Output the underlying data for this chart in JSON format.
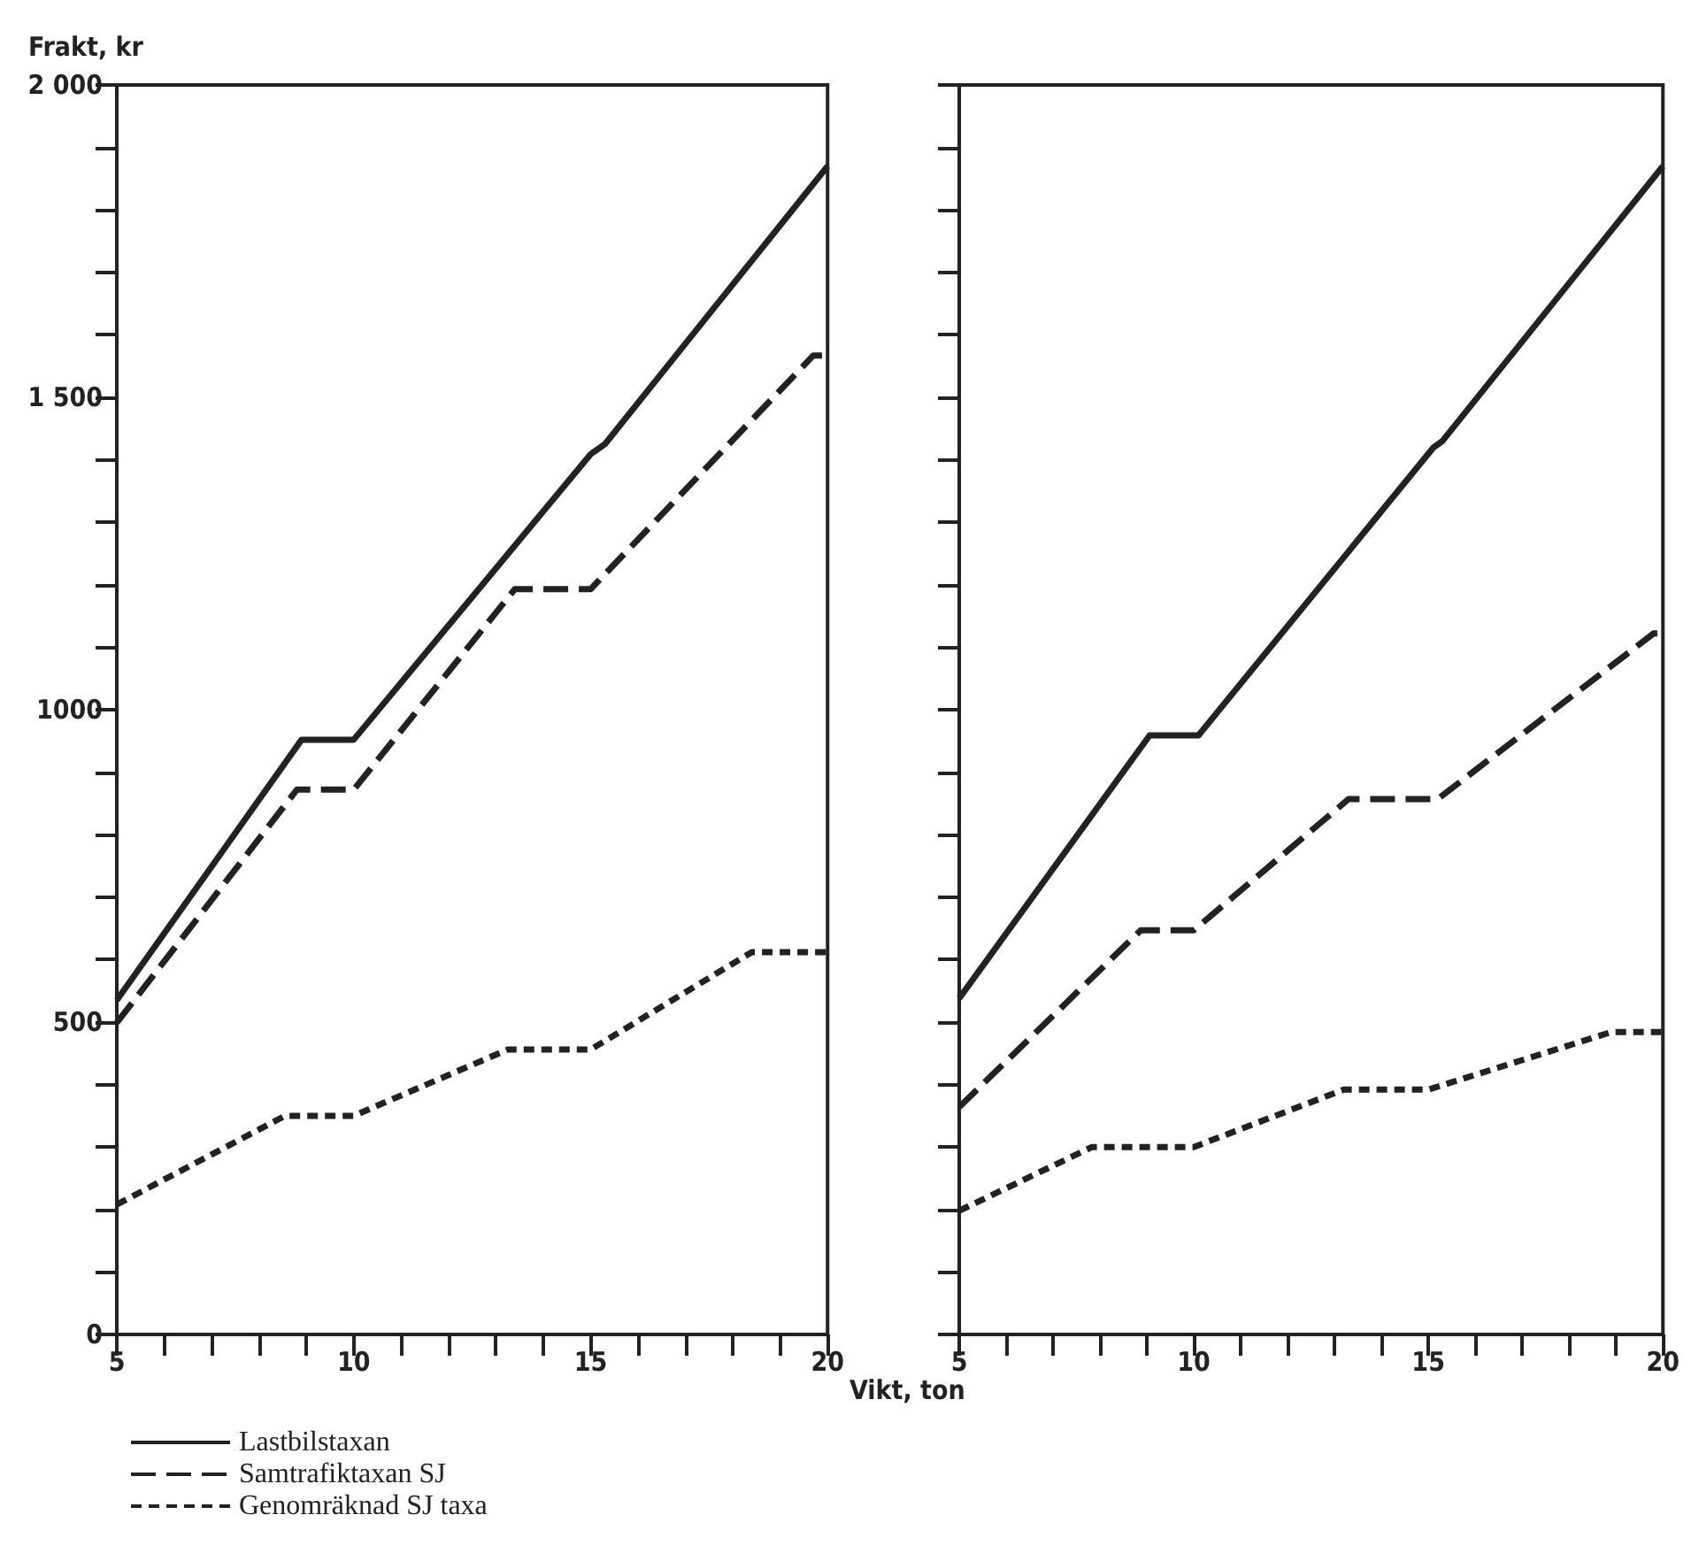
{
  "chart_data": [
    {
      "type": "line",
      "ylabel": "Frakt, kr",
      "xlim": [
        5,
        20
      ],
      "ylim": [
        0,
        2000
      ],
      "legend": "bottom",
      "marker": "none",
      "grid": false,
      "tick_labels": true,
      "xticks": [
        5,
        {
          "value": 6,
          "label": null
        },
        {
          "value": 7,
          "label": null
        },
        {
          "value": 8,
          "label": null
        },
        {
          "value": 9,
          "label": null
        },
        10,
        {
          "value": 11,
          "label": null
        },
        {
          "value": 12,
          "label": null
        },
        {
          "value": 13,
          "label": null
        },
        {
          "value": 14,
          "label": null
        },
        15,
        {
          "value": 16,
          "label": null
        },
        {
          "value": 17,
          "label": null
        },
        {
          "value": 18,
          "label": null
        },
        {
          "value": 19,
          "label": null
        },
        20
      ],
      "yticks": [
        0,
        {
          "value": 100,
          "label": null
        },
        {
          "value": 200,
          "label": null
        },
        {
          "value": 300,
          "label": null
        },
        {
          "value": 400,
          "label": null
        },
        500,
        {
          "value": 600,
          "label": null
        },
        {
          "value": 700,
          "label": null
        },
        {
          "value": 800,
          "label": null
        },
        {
          "value": 900,
          "label": null
        },
        1000,
        {
          "value": 1100,
          "label": null
        },
        {
          "value": 1200,
          "label": null
        },
        {
          "value": 1300,
          "label": null
        },
        {
          "value": 1400,
          "label": null
        },
        {
          "value": 1500,
          "label": "1 500"
        },
        {
          "value": 1600,
          "label": null
        },
        {
          "value": 1700,
          "label": null
        },
        {
          "value": 1800,
          "label": null
        },
        {
          "value": 1900,
          "label": null
        },
        {
          "value": 2000,
          "label": "2 000"
        }
      ],
      "series": [
        {
          "name": "Lastbilstaxan",
          "color": "#222222",
          "line_style": "solid",
          "x": [
            5,
            8.9,
            10,
            15,
            15.3,
            20
          ],
          "values": [
            535,
            952,
            952,
            1409,
            1425,
            1870
          ]
        },
        {
          "name": "Samtrafiktaxan SJ",
          "color": "#222222",
          "line_style": "dashed",
          "x": [
            5,
            8.8,
            10,
            13.4,
            15,
            19.7,
            20
          ],
          "values": [
            499,
            872,
            872,
            1193,
            1193,
            1567,
            1567
          ]
        },
        {
          "name": "Genomräknad SJ taxa",
          "color": "#222222",
          "line_style": "dotted",
          "x": [
            5,
            8.55,
            10,
            13.25,
            15,
            18.4,
            20
          ],
          "values": [
            208,
            350,
            350,
            456,
            456,
            612,
            612
          ]
        }
      ]
    },
    {
      "type": "line",
      "xlabel": "Vikt, ton",
      "xlim": [
        5,
        20
      ],
      "ylim": [
        0,
        2000
      ],
      "legend": false,
      "marker": "none",
      "grid": false,
      "tick_labels": "x",
      "xticks": [
        5,
        {
          "value": 6,
          "label": null
        },
        {
          "value": 7,
          "label": null
        },
        {
          "value": 8,
          "label": null
        },
        {
          "value": 9,
          "label": null
        },
        10,
        {
          "value": 11,
          "label": null
        },
        {
          "value": 12,
          "label": null
        },
        {
          "value": 13,
          "label": null
        },
        {
          "value": 14,
          "label": null
        },
        15,
        {
          "value": 16,
          "label": null
        },
        {
          "value": 17,
          "label": null
        },
        {
          "value": 18,
          "label": null
        },
        {
          "value": 19,
          "label": null
        },
        20
      ],
      "yticks": [
        0,
        {
          "value": 100,
          "label": null
        },
        {
          "value": 200,
          "label": null
        },
        {
          "value": 300,
          "label": null
        },
        {
          "value": 400,
          "label": null
        },
        {
          "value": 500,
          "label": null
        },
        {
          "value": 600,
          "label": null
        },
        {
          "value": 700,
          "label": null
        },
        {
          "value": 800,
          "label": null
        },
        {
          "value": 900,
          "label": null
        },
        {
          "value": 1000,
          "label": null
        },
        {
          "value": 1100,
          "label": null
        },
        {
          "value": 1200,
          "label": null
        },
        {
          "value": 1300,
          "label": null
        },
        {
          "value": 1400,
          "label": null
        },
        {
          "value": 1500,
          "label": null
        },
        {
          "value": 1600,
          "label": null
        },
        {
          "value": 1700,
          "label": null
        },
        {
          "value": 1800,
          "label": null
        },
        {
          "value": 1900,
          "label": null
        },
        {
          "value": 2000,
          "label": null
        }
      ],
      "series": [
        {
          "color": "#222222",
          "line_style": "solid",
          "x": [
            5,
            9.06,
            10.1,
            15.1,
            15.3,
            20
          ],
          "values": [
            538,
            959,
            959,
            1419,
            1430,
            1870
          ]
        },
        {
          "color": "#222222",
          "line_style": "dashed",
          "x": [
            5,
            8.87,
            10,
            13.3,
            15.2,
            19.8,
            20
          ],
          "values": [
            364,
            647,
            647,
            857,
            857,
            1122,
            1122
          ]
        },
        {
          "color": "#222222",
          "line_style": "dotted",
          "x": [
            5,
            7.83,
            10,
            13.2,
            15,
            18.9,
            20
          ],
          "values": [
            198,
            300,
            300,
            392,
            392,
            484,
            484
          ]
        }
      ]
    }
  ]
}
